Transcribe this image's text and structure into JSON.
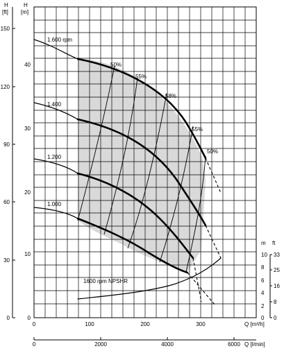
{
  "chart_data": {
    "type": "line",
    "title": "",
    "axes": {
      "x_top": {
        "label": "Q [m³/h]",
        "ticks": [
          "0",
          "100",
          "200",
          "300"
        ],
        "range": [
          0,
          375
        ]
      },
      "x_bottom": {
        "label": "Q [l/min]",
        "ticks": [
          "0",
          "2000",
          "4000",
          "6000"
        ]
      },
      "y_head_m": {
        "label": "H\n[m]",
        "ticks": [
          "0",
          "10",
          "20",
          "30",
          "40"
        ],
        "range": [
          0,
          46
        ]
      },
      "y_head_ft": {
        "label": "H\n[ft]",
        "ticks": [
          "0",
          "30",
          "60",
          "90",
          "120",
          "150"
        ]
      },
      "y_npsh_m": {
        "label": "m",
        "ticks": [
          "0",
          "2",
          "4",
          "6",
          "8",
          "10"
        ]
      },
      "y_npsh_ft": {
        "label": "ft",
        "ticks": [
          "0",
          "8",
          "16",
          "25",
          "33"
        ]
      }
    },
    "grid": true,
    "series": [
      {
        "name": "1.600 rpm",
        "x": [
          0,
          50,
          100,
          150,
          200,
          250,
          280,
          300,
          310
        ],
        "y": [
          43.7,
          42.8,
          40.8,
          38.8,
          36.2,
          32.0,
          28.5,
          25.6,
          24.0
        ]
      },
      {
        "name": "1.400",
        "x": [
          0,
          50,
          100,
          150,
          200,
          250,
          280
        ],
        "y": [
          33.5,
          32.3,
          30.5,
          28.2,
          25.0,
          20.5,
          17.5
        ]
      },
      {
        "name": "1.200",
        "x": [
          0,
          50,
          100,
          150,
          200,
          240
        ],
        "y": [
          24.6,
          23.5,
          22.0,
          19.8,
          16.4,
          12.8
        ]
      },
      {
        "name": "1.000",
        "x": [
          0,
          40,
          80,
          120,
          160,
          200
        ],
        "y": [
          17.0,
          16.3,
          14.9,
          13.0,
          10.8,
          8.0
        ]
      },
      {
        "name": "1600 rpm NPSHR",
        "x": [
          80,
          130,
          180,
          230,
          280,
          330
        ],
        "y": [
          2.7,
          3.1,
          3.6,
          4.5,
          6.4,
          9.4
        ]
      }
    ],
    "efficiency_labels": [
      "50%",
      "55%",
      "58%",
      "55%",
      "50%"
    ],
    "operating_zone": "shaded"
  }
}
